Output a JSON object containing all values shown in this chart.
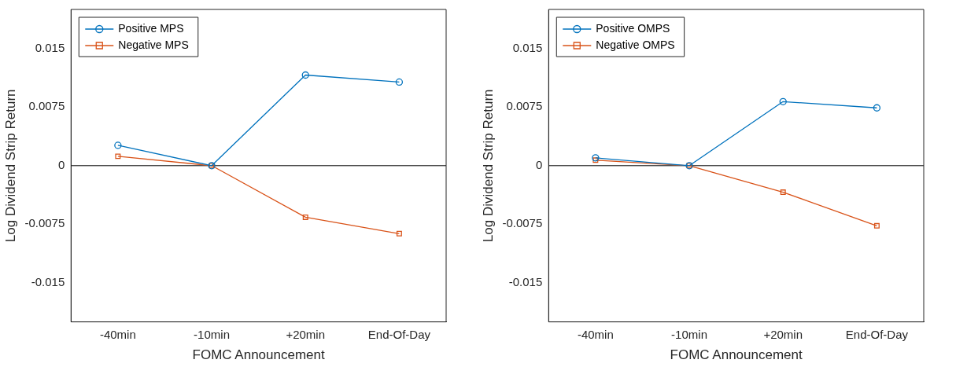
{
  "chart_data": [
    {
      "type": "line",
      "xlabel": "FOMC Announcement",
      "ylabel": "Log Dividend Strip Return",
      "categories": [
        "-40min",
        "-10min",
        "+20min",
        "End-Of-Day"
      ],
      "series": [
        {
          "name": "Positive MPS",
          "color": "#0072bd",
          "marker": "circle",
          "values": [
            0.0026,
            0,
            0.0116,
            0.0107
          ]
        },
        {
          "name": "Negative MPS",
          "color": "#d95319",
          "marker": "square",
          "values": [
            0.0012,
            0,
            -0.0066,
            -0.0087
          ]
        }
      ],
      "ylim": [
        -0.02,
        0.02
      ],
      "yticks": [
        -0.015,
        -0.0075,
        0,
        0.0075,
        0.015
      ],
      "grid": false,
      "legend": "top left",
      "line_style": "solid",
      "ref_lines": [
        {
          "axis": "y",
          "value": 0,
          "color": "#000000"
        }
      ]
    },
    {
      "type": "line",
      "xlabel": "FOMC Announcement",
      "ylabel": "Log Dividend Strip Return",
      "categories": [
        "-40min",
        "-10min",
        "+20min",
        "End-Of-Day"
      ],
      "series": [
        {
          "name": "Positive OMPS",
          "color": "#0072bd",
          "marker": "circle",
          "values": [
            0.001,
            0,
            0.0082,
            0.0074
          ]
        },
        {
          "name": "Negative OMPS",
          "color": "#d95319",
          "marker": "square",
          "values": [
            0.0007,
            0,
            -0.0034,
            -0.0077
          ]
        }
      ],
      "ylim": [
        -0.02,
        0.02
      ],
      "yticks": [
        -0.015,
        -0.0075,
        0,
        0.0075,
        0.015
      ],
      "grid": false,
      "legend": "top left",
      "line_style": "solid",
      "ref_lines": [
        {
          "axis": "y",
          "value": 0,
          "color": "#000000"
        }
      ]
    }
  ]
}
